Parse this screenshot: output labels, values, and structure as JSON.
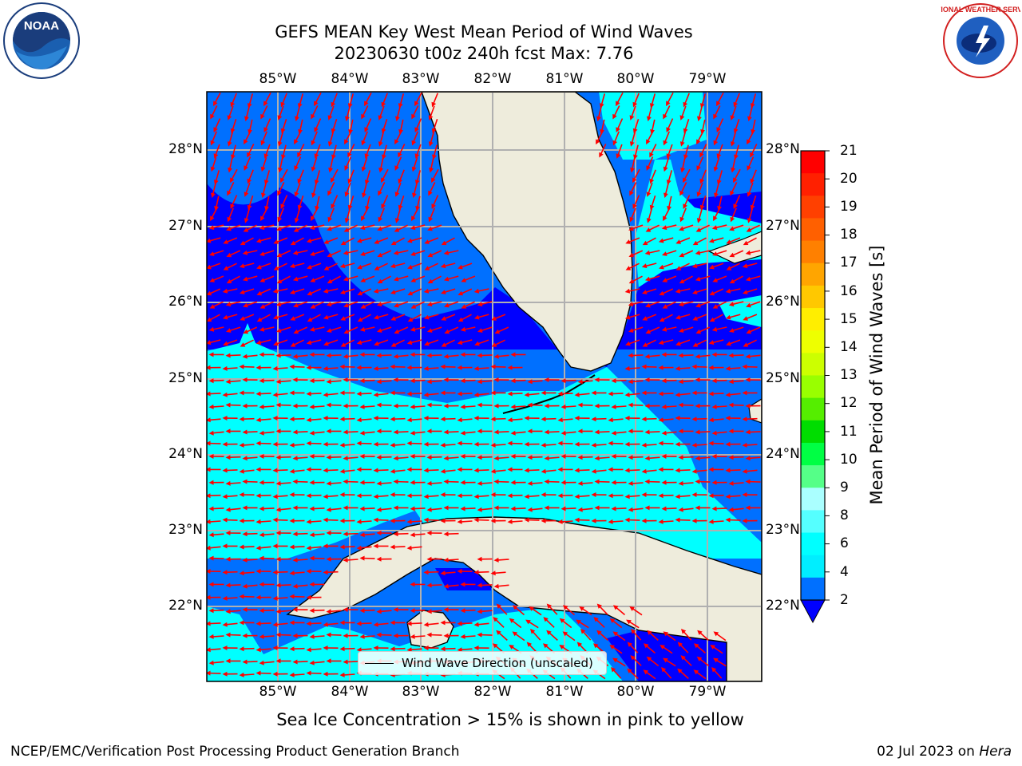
{
  "title": {
    "line1": "GEFS MEAN Key West Mean Period of Wind Waves",
    "line2": "20230630 t00z 240h fcst   Max: 7.76"
  },
  "map": {
    "lon_labels": [
      "85°W",
      "84°W",
      "83°W",
      "82°W",
      "81°W",
      "80°W",
      "79°W"
    ],
    "lat_labels": [
      "28°N",
      "27°N",
      "26°N",
      "25°N",
      "24°N",
      "23°N",
      "22°N"
    ],
    "colors": {
      "land": "#eeecdc",
      "coast": "#000000",
      "grid": "#b0b0b0",
      "arrows": "#ff0000",
      "band_2_4": "#0070ff",
      "band_4_6": "#00ffff",
      "below_2": "#0000ff"
    },
    "legend_label": "Wind Wave Direction (unscaled)"
  },
  "colorbar": {
    "label": "Mean Period of Wind Waves [s]",
    "ticks": [
      "21",
      "20",
      "19",
      "18",
      "17",
      "16",
      "15",
      "14",
      "13",
      "12",
      "11",
      "10",
      "9",
      "8",
      "6",
      "4",
      "2"
    ],
    "colors_top_to_bottom": [
      "#ff0000",
      "#ff2000",
      "#ff4000",
      "#ff6000",
      "#ff8000",
      "#ffa500",
      "#ffc800",
      "#ffee00",
      "#eeff00",
      "#ccff00",
      "#99ff00",
      "#55ee00",
      "#00dd00",
      "#00ff44",
      "#55ff88",
      "#aaffff",
      "#55ffff",
      "#00ffff",
      "#00eeff",
      "#0070ff"
    ],
    "extend_color": "#0000ff"
  },
  "notes": {
    "ice": "Sea Ice Concentration > 15% is shown in pink to yellow"
  },
  "footer": {
    "left": "NCEP/EMC/Verification Post Processing Product Generation Branch",
    "right_date": "02 Jul 2023 on",
    "right_host": "Hera"
  },
  "logos": {
    "noaa_text": "NOAA",
    "nws_text": "NATIONAL WEATHER SERVICE"
  }
}
